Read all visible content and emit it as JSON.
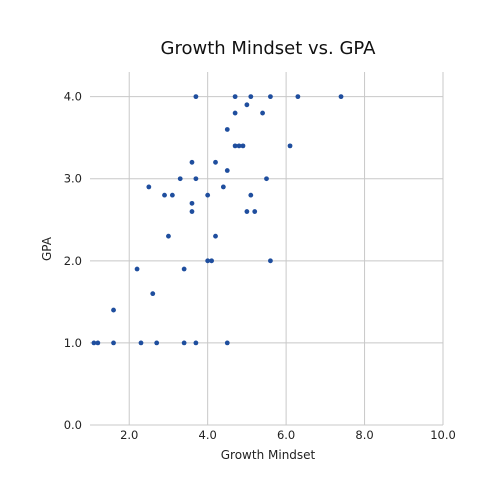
{
  "chart_data": {
    "type": "scatter",
    "title": "Growth Mindset vs. GPA",
    "xlabel": "Growth Mindset",
    "ylabel": "GPA",
    "xlim": [
      1.0,
      10.0
    ],
    "ylim": [
      0.0,
      4.3
    ],
    "xticks": [
      2.0,
      4.0,
      6.0,
      8.0,
      10.0
    ],
    "xtick_labels": [
      "2.0",
      "4.0",
      "6.0",
      "8.0",
      "10.0"
    ],
    "yticks": [
      0.0,
      1.0,
      2.0,
      3.0,
      4.0
    ],
    "ytick_labels": [
      "0.0",
      "1.0",
      "2.0",
      "3.0",
      "4.0"
    ],
    "grid": true,
    "marker_color": "#1f4e9e",
    "points": [
      {
        "x": 1.1,
        "y": 1.0
      },
      {
        "x": 1.2,
        "y": 1.0
      },
      {
        "x": 1.6,
        "y": 1.0
      },
      {
        "x": 1.6,
        "y": 1.4
      },
      {
        "x": 2.2,
        "y": 1.9
      },
      {
        "x": 2.3,
        "y": 1.0
      },
      {
        "x": 2.5,
        "y": 2.9
      },
      {
        "x": 2.6,
        "y": 1.6
      },
      {
        "x": 2.7,
        "y": 1.0
      },
      {
        "x": 2.9,
        "y": 2.8
      },
      {
        "x": 3.0,
        "y": 2.3
      },
      {
        "x": 3.1,
        "y": 2.8
      },
      {
        "x": 3.3,
        "y": 3.0
      },
      {
        "x": 3.4,
        "y": 1.9
      },
      {
        "x": 3.4,
        "y": 1.0
      },
      {
        "x": 3.6,
        "y": 3.2
      },
      {
        "x": 3.6,
        "y": 2.7
      },
      {
        "x": 3.6,
        "y": 2.6
      },
      {
        "x": 3.7,
        "y": 4.0
      },
      {
        "x": 3.7,
        "y": 3.0
      },
      {
        "x": 3.7,
        "y": 1.0
      },
      {
        "x": 4.0,
        "y": 2.8
      },
      {
        "x": 4.0,
        "y": 2.0
      },
      {
        "x": 4.1,
        "y": 2.0
      },
      {
        "x": 4.2,
        "y": 3.2
      },
      {
        "x": 4.2,
        "y": 2.3
      },
      {
        "x": 4.4,
        "y": 2.9
      },
      {
        "x": 4.5,
        "y": 3.6
      },
      {
        "x": 4.5,
        "y": 3.1
      },
      {
        "x": 4.5,
        "y": 1.0
      },
      {
        "x": 4.7,
        "y": 4.0
      },
      {
        "x": 4.7,
        "y": 3.8
      },
      {
        "x": 4.7,
        "y": 3.4
      },
      {
        "x": 4.8,
        "y": 3.4
      },
      {
        "x": 4.9,
        "y": 3.4
      },
      {
        "x": 5.0,
        "y": 3.9
      },
      {
        "x": 5.0,
        "y": 2.6
      },
      {
        "x": 5.1,
        "y": 4.0
      },
      {
        "x": 5.1,
        "y": 2.8
      },
      {
        "x": 5.2,
        "y": 2.6
      },
      {
        "x": 5.4,
        "y": 3.8
      },
      {
        "x": 5.5,
        "y": 3.0
      },
      {
        "x": 5.6,
        "y": 4.0
      },
      {
        "x": 5.6,
        "y": 2.0
      },
      {
        "x": 6.1,
        "y": 3.4
      },
      {
        "x": 6.3,
        "y": 4.0
      },
      {
        "x": 7.4,
        "y": 4.0
      }
    ]
  }
}
